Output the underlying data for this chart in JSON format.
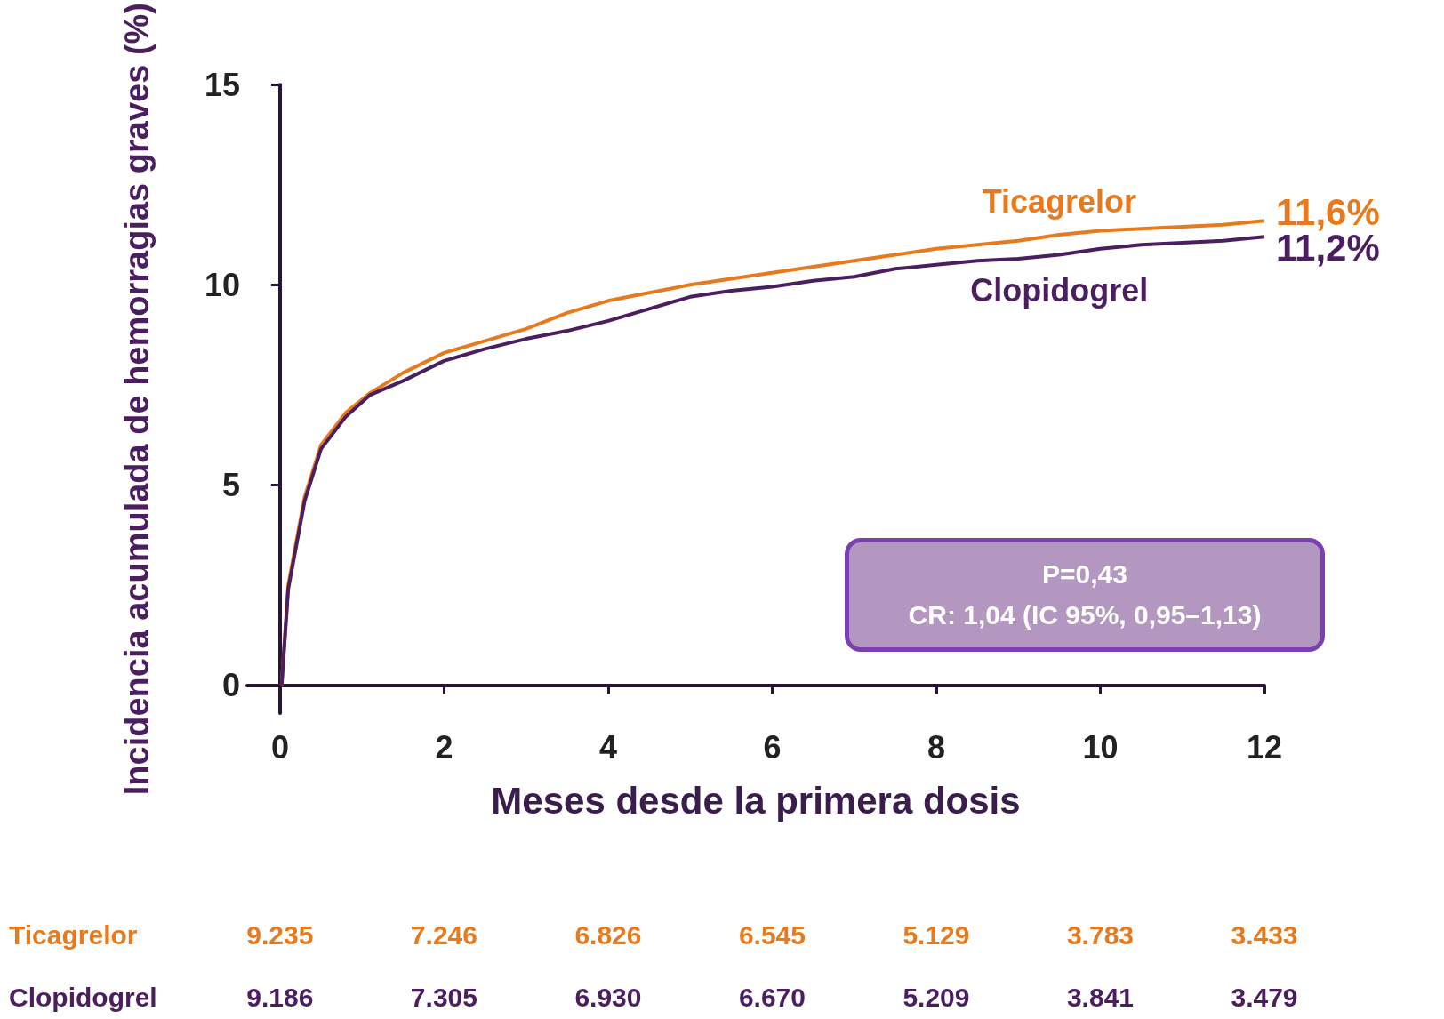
{
  "chart_data": {
    "type": "line",
    "xlabel": "Meses desde la primera dosis",
    "ylabel": "Incidencia acumulada de hemorragias graves (%)",
    "xlim": [
      -0.4,
      12
    ],
    "xticks": [
      0,
      2,
      4,
      6,
      8,
      10,
      12
    ],
    "ylim": [
      -0.7,
      15
    ],
    "yticks": [
      0,
      5,
      10,
      15
    ],
    "grid": false,
    "legend": false,
    "marker": "none",
    "series": [
      {
        "name": "Ticagrelor",
        "color": "#e87a1e",
        "x": [
          0.02,
          0.1,
          0.3,
          0.5,
          0.8,
          1.1,
          1.5,
          2,
          2.5,
          3,
          3.5,
          4,
          4.5,
          5,
          5.5,
          6,
          6.5,
          7,
          7.5,
          8,
          8.5,
          9,
          9.5,
          10,
          10.5,
          11,
          11.5,
          12
        ],
        "values": [
          0,
          2.5,
          4.7,
          6.0,
          6.8,
          7.3,
          7.8,
          8.3,
          8.6,
          8.9,
          9.3,
          9.6,
          9.8,
          10.0,
          10.15,
          10.3,
          10.45,
          10.6,
          10.75,
          10.9,
          11.0,
          11.1,
          11.25,
          11.35,
          11.4,
          11.45,
          11.5,
          11.6
        ],
        "value_labels": [
          null,
          null,
          null,
          null,
          null,
          null,
          null,
          null,
          null,
          null,
          null,
          null,
          null,
          null,
          null,
          null,
          null,
          null,
          null,
          null,
          null,
          null,
          null,
          null,
          null,
          null,
          null,
          "11,6%"
        ]
      },
      {
        "name": "Clopidogrel",
        "color": "#4b1f5f",
        "x": [
          0.02,
          0.1,
          0.3,
          0.5,
          0.8,
          1.1,
          1.5,
          2,
          2.5,
          3,
          3.5,
          4,
          4.5,
          5,
          5.5,
          6,
          6.5,
          7,
          7.5,
          8,
          8.5,
          9,
          9.5,
          10,
          10.5,
          11,
          11.5,
          12
        ],
        "values": [
          0,
          2.4,
          4.6,
          5.9,
          6.7,
          7.25,
          7.6,
          8.1,
          8.4,
          8.65,
          8.85,
          9.1,
          9.4,
          9.7,
          9.85,
          9.95,
          10.1,
          10.2,
          10.4,
          10.5,
          10.6,
          10.65,
          10.75,
          10.9,
          11.0,
          11.05,
          11.1,
          11.2
        ],
        "value_labels": [
          null,
          null,
          null,
          null,
          null,
          null,
          null,
          null,
          null,
          null,
          null,
          null,
          null,
          null,
          null,
          null,
          null,
          null,
          null,
          null,
          null,
          null,
          null,
          null,
          null,
          null,
          null,
          "11,2%"
        ]
      }
    ],
    "annotations": [
      "P=0,43",
      "CR: 1,04 (IC 95%, 0,95–1,13)",
      "Ticagrelor",
      "9.235",
      "7.246",
      "6.826",
      "6.545",
      "5.129",
      "3.783",
      "3.433",
      "Clopidogrel",
      "9.186",
      "7.305",
      "6.930",
      "6.670",
      "5.209",
      "3.841",
      "3.479"
    ]
  }
}
